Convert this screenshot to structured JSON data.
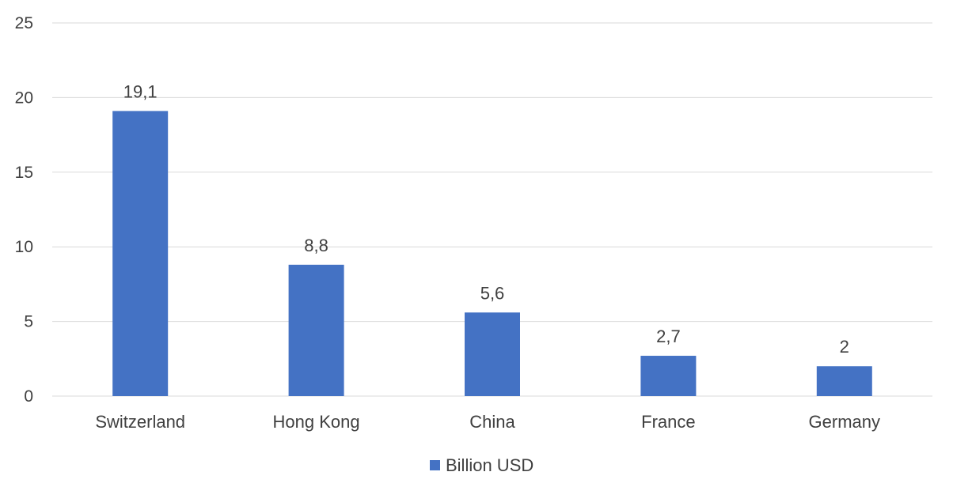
{
  "chart_data": {
    "type": "bar",
    "categories": [
      "Switzerland",
      "Hong Kong",
      "China",
      "France",
      "Germany"
    ],
    "series": [
      {
        "name": "Billion USD",
        "values": [
          19.1,
          8.8,
          5.6,
          2.7,
          2
        ],
        "labels": [
          "19,1",
          "8,8",
          "5,6",
          "2,7",
          "2"
        ],
        "color": "#4472c4"
      }
    ],
    "title": "",
    "xlabel": "",
    "ylabel": "",
    "ylim": [
      0,
      25
    ],
    "yticks": [
      0,
      5,
      10,
      15,
      20,
      25
    ],
    "grid": true,
    "legend_position": "bottom"
  }
}
